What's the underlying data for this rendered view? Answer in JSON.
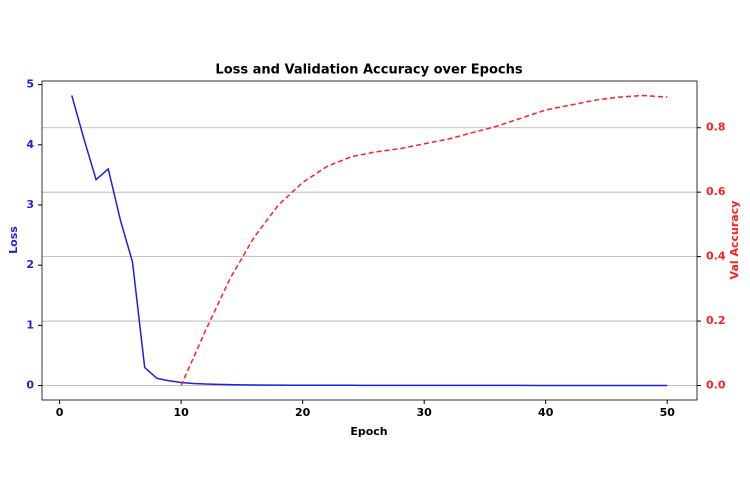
{
  "chart_data": {
    "type": "line",
    "title": "Loss and Validation Accuracy over Epochs",
    "x_label": "Epoch",
    "y_label": "Loss",
    "y2_label": "Val Accuracy",
    "xlim": [
      -1.45,
      52.45
    ],
    "xticks": [
      0,
      10,
      20,
      30,
      40,
      50
    ],
    "ylim": [
      -0.24,
      5.06
    ],
    "yticks": [
      0,
      1,
      2,
      3,
      4,
      5
    ],
    "y2lim": [
      -0.045,
      0.945
    ],
    "y2ticks": [
      {
        "value": 0,
        "label": "0.0"
      },
      0.2,
      0.4,
      0.6,
      0.8
    ],
    "grid": true,
    "series": [
      {
        "name": "Loss",
        "color": "#1f1fdf",
        "axis": "y",
        "dash": false,
        "x": [
          1,
          2,
          3,
          4,
          5,
          6,
          7,
          8,
          9,
          10,
          11,
          12,
          13,
          14,
          15,
          16,
          17,
          18,
          19,
          20,
          21,
          22,
          23,
          24,
          25,
          26,
          27,
          28,
          29,
          30,
          31,
          32,
          33,
          34,
          35,
          36,
          37,
          38,
          39,
          40,
          41,
          42,
          43,
          44,
          45,
          46,
          47,
          48,
          49,
          50
        ],
        "values": [
          4.82,
          4.1,
          3.42,
          3.6,
          2.75,
          2.05,
          0.3,
          0.12,
          0.08,
          0.05,
          0.035,
          0.025,
          0.02,
          0.015,
          0.012,
          0.01,
          0.008,
          0.007,
          0.006,
          0.005,
          0.005,
          0.004,
          0.004,
          0.004,
          0.003,
          0.003,
          0.003,
          0.003,
          0.003,
          0.002,
          0.002,
          0.002,
          0.002,
          0.002,
          0.002,
          0.002,
          0.002,
          0.002,
          0.001,
          0.001,
          0.001,
          0.001,
          0.001,
          0.001,
          0.001,
          0.001,
          0.001,
          0.001,
          0.001,
          0.001
        ]
      },
      {
        "name": "Val Accuracy",
        "color": "#ff2020",
        "axis": "y2",
        "dash": true,
        "x": [
          10,
          12,
          14,
          16,
          18,
          20,
          22,
          24,
          26,
          28,
          30,
          32,
          34,
          36,
          38,
          40,
          42,
          44,
          46,
          48,
          50
        ],
        "values": [
          0.0,
          0.17,
          0.33,
          0.46,
          0.56,
          0.63,
          0.68,
          0.71,
          0.725,
          0.735,
          0.75,
          0.765,
          0.785,
          0.805,
          0.83,
          0.855,
          0.87,
          0.885,
          0.895,
          0.9,
          0.895
        ]
      }
    ]
  }
}
